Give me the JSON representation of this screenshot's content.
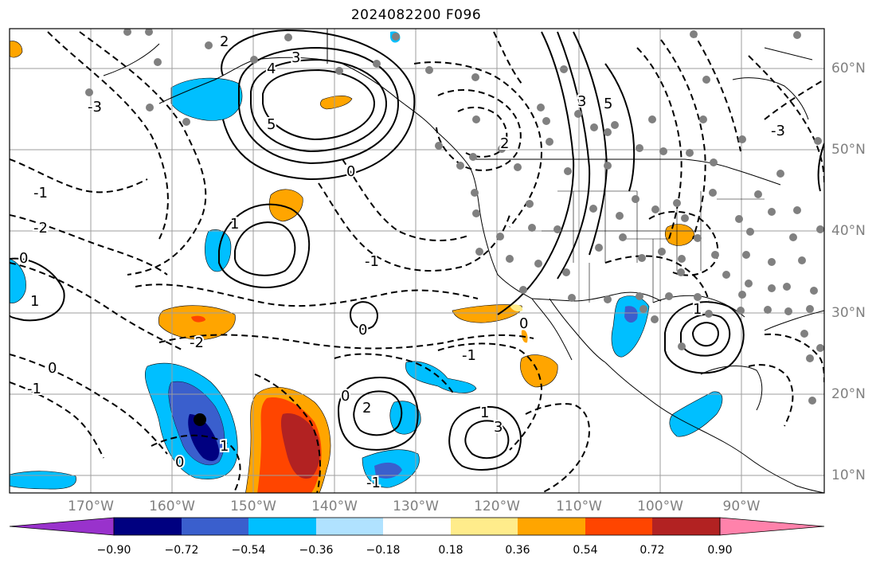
{
  "title": "2024082200 F096",
  "map": {
    "latitude_labels": [
      "60°N",
      "50°N",
      "40°N",
      "30°N",
      "20°N",
      "10°N"
    ],
    "longitude_labels": [
      "170°W",
      "160°W",
      "150°W",
      "140°W",
      "130°W",
      "120°W",
      "110°W",
      "100°W",
      "90°W"
    ],
    "grid": true,
    "contour_style": {
      "positive": "solid",
      "negative": "dashed",
      "color": "#000000"
    },
    "contour_labels": [
      "2",
      "3",
      "4",
      "5",
      "-3",
      "-2",
      "-1",
      "0",
      "1",
      "2",
      "3",
      "5",
      "-3",
      "0",
      "-1",
      "1",
      "0",
      "-1",
      "0",
      "-1",
      "0",
      "1",
      "2",
      "1",
      "3",
      "1",
      "-1",
      "0",
      "0",
      "-2"
    ],
    "station_marker_color": "#808080"
  },
  "colorbar": {
    "tick_labels": [
      "−0.90",
      "−0.72",
      "−0.54",
      "−0.36",
      "−0.18",
      "0.18",
      "0.36",
      "0.54",
      "0.72",
      "0.90"
    ],
    "colors": [
      "#9932cc",
      "#000080",
      "#3a5fcd",
      "#00bfff",
      "#b0e2ff",
      "#ffffff",
      "#ffec8b",
      "#ffa500",
      "#ff4500",
      "#b22222",
      "#ff82ab"
    ]
  }
}
